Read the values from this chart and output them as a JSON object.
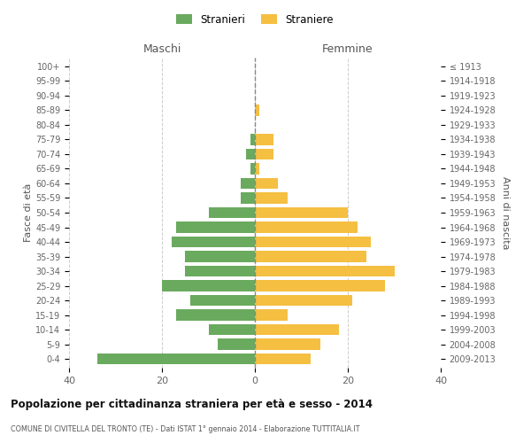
{
  "age_groups": [
    "0-4",
    "5-9",
    "10-14",
    "15-19",
    "20-24",
    "25-29",
    "30-34",
    "35-39",
    "40-44",
    "45-49",
    "50-54",
    "55-59",
    "60-64",
    "65-69",
    "70-74",
    "75-79",
    "80-84",
    "85-89",
    "90-94",
    "95-99",
    "100+"
  ],
  "birth_years": [
    "2009-2013",
    "2004-2008",
    "1999-2003",
    "1994-1998",
    "1989-1993",
    "1984-1988",
    "1979-1983",
    "1974-1978",
    "1969-1973",
    "1964-1968",
    "1959-1963",
    "1954-1958",
    "1949-1953",
    "1944-1948",
    "1939-1943",
    "1934-1938",
    "1929-1933",
    "1924-1928",
    "1919-1923",
    "1914-1918",
    "≤ 1913"
  ],
  "maschi": [
    34,
    8,
    10,
    17,
    14,
    20,
    15,
    15,
    18,
    17,
    10,
    3,
    3,
    1,
    2,
    1,
    0,
    0,
    0,
    0,
    0
  ],
  "femmine": [
    12,
    14,
    18,
    7,
    21,
    28,
    30,
    24,
    25,
    22,
    20,
    7,
    5,
    1,
    4,
    4,
    0,
    1,
    0,
    0,
    0
  ],
  "male_color": "#6aaa5e",
  "female_color": "#f5bf42",
  "title": "Popolazione per cittadinanza straniera per età e sesso - 2014",
  "subtitle": "COMUNE DI CIVITELLA DEL TRONTO (TE) - Dati ISTAT 1° gennaio 2014 - Elaborazione TUTTITALIA.IT",
  "xlabel_left": "Maschi",
  "xlabel_right": "Femmine",
  "ylabel_left": "Fasce di età",
  "ylabel_right": "Anni di nascita",
  "legend_male": "Stranieri",
  "legend_female": "Straniere",
  "xlim": 40,
  "background_color": "#ffffff",
  "grid_color": "#cccccc",
  "bar_height": 0.75
}
